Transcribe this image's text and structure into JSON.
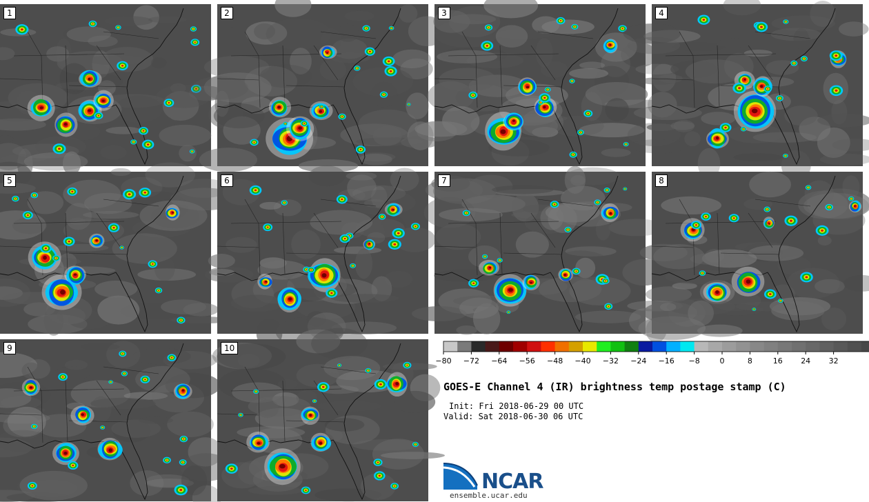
{
  "figure": {
    "title": "GOES-E Channel 4 (IR) brightness temp postage stamp (C)",
    "init": "Init: Fri 2018-06-29 00 UTC",
    "valid": "Valid: Sat 2018-06-30 06 UTC",
    "logo_text": "NCAR",
    "logo_url": "ensemble.ucar.edu"
  },
  "panels": [
    {
      "label": "1"
    },
    {
      "label": "2"
    },
    {
      "label": "3"
    },
    {
      "label": "4"
    },
    {
      "label": "5"
    },
    {
      "label": "6"
    },
    {
      "label": "7"
    },
    {
      "label": "8"
    },
    {
      "label": "9"
    },
    {
      "label": "10"
    }
  ],
  "colorbar": {
    "ticks": [
      "−80",
      "−72",
      "−64",
      "−56",
      "−48",
      "−40",
      "−32",
      "−24",
      "−16",
      "−8",
      "0",
      "8",
      "16",
      "24",
      "32"
    ],
    "colors": [
      "#c8c8c8",
      "#7a7a7a",
      "#2a2a2a",
      "#4a1a1a",
      "#6e0000",
      "#a00000",
      "#d01010",
      "#ff3000",
      "#f07000",
      "#d4a000",
      "#e8e800",
      "#20ee20",
      "#10c010",
      "#108010",
      "#0a1aa0",
      "#0050e0",
      "#00b0ff",
      "#00e8f0",
      "#b8b8b8",
      "#a8a8a8",
      "#9c9c9c",
      "#929292",
      "#888888",
      "#808080",
      "#787878",
      "#707070",
      "#686868",
      "#606060",
      "#585858",
      "#505050",
      "#484848",
      "#404040",
      "#383838",
      "#303030",
      "#282828"
    ],
    "colors_note": "color scale colours"
  }
}
